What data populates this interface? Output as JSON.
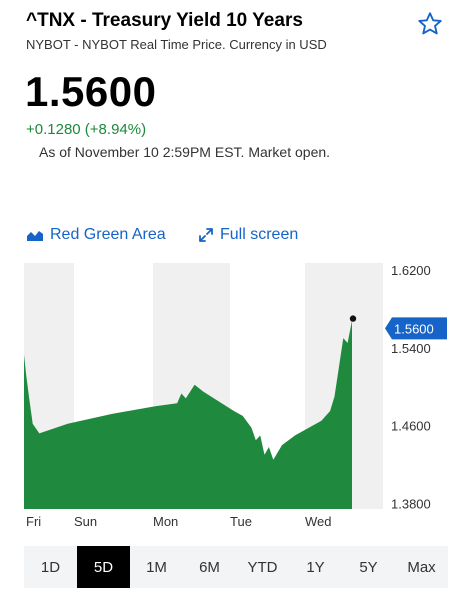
{
  "header": {
    "title": "^TNX - Treasury Yield 10 Years",
    "subtitle": "NYBOT - NYBOT Real Time Price. Currency in USD",
    "price": "1.5600",
    "change": "+0.1280 (+8.94%)",
    "as_of": "As of November 10 2:59PM EST. Market open."
  },
  "chart_options": {
    "area_label": "Red Green Area",
    "fullscreen_label": "Full screen"
  },
  "colors": {
    "accent": "#1664c7",
    "positive": "#1a8a3a",
    "area_fill": "#1f8a3d"
  },
  "chart_data": {
    "type": "area",
    "x_labels": [
      "Fri",
      "Sun",
      "Mon",
      "Tue",
      "Wed"
    ],
    "y_ticks": [
      "1.6200",
      "1.5400",
      "1.4600",
      "1.3800"
    ],
    "ylim": [
      1.38,
      1.62
    ],
    "current_value": 1.56,
    "current_label": "1.5600",
    "series": [
      {
        "values": [
          [
            0,
            1.533
          ],
          [
            0.5,
            1.512
          ],
          [
            1.2,
            1.488
          ],
          [
            2,
            1.462
          ],
          [
            3.5,
            1.452
          ],
          [
            10,
            1.462
          ],
          [
            20,
            1.472
          ],
          [
            30,
            1.48
          ],
          [
            35,
            1.483
          ],
          [
            36,
            1.493
          ],
          [
            37,
            1.488
          ],
          [
            39,
            1.502
          ],
          [
            41,
            1.495
          ],
          [
            48,
            1.475
          ],
          [
            50,
            1.47
          ],
          [
            52,
            1.458
          ],
          [
            53,
            1.445
          ],
          [
            54,
            1.45
          ],
          [
            55,
            1.43
          ],
          [
            56,
            1.438
          ],
          [
            57,
            1.425
          ],
          [
            59,
            1.44
          ],
          [
            62,
            1.45
          ],
          [
            68,
            1.465
          ],
          [
            70,
            1.475
          ],
          [
            71,
            1.49
          ],
          [
            72,
            1.52
          ],
          [
            73,
            1.55
          ],
          [
            74,
            1.545
          ],
          [
            75,
            1.568
          ]
        ]
      }
    ],
    "grid": true
  },
  "range_tabs": {
    "items": [
      "1D",
      "5D",
      "1M",
      "6M",
      "YTD",
      "1Y",
      "5Y",
      "Max"
    ],
    "active": "5D"
  }
}
